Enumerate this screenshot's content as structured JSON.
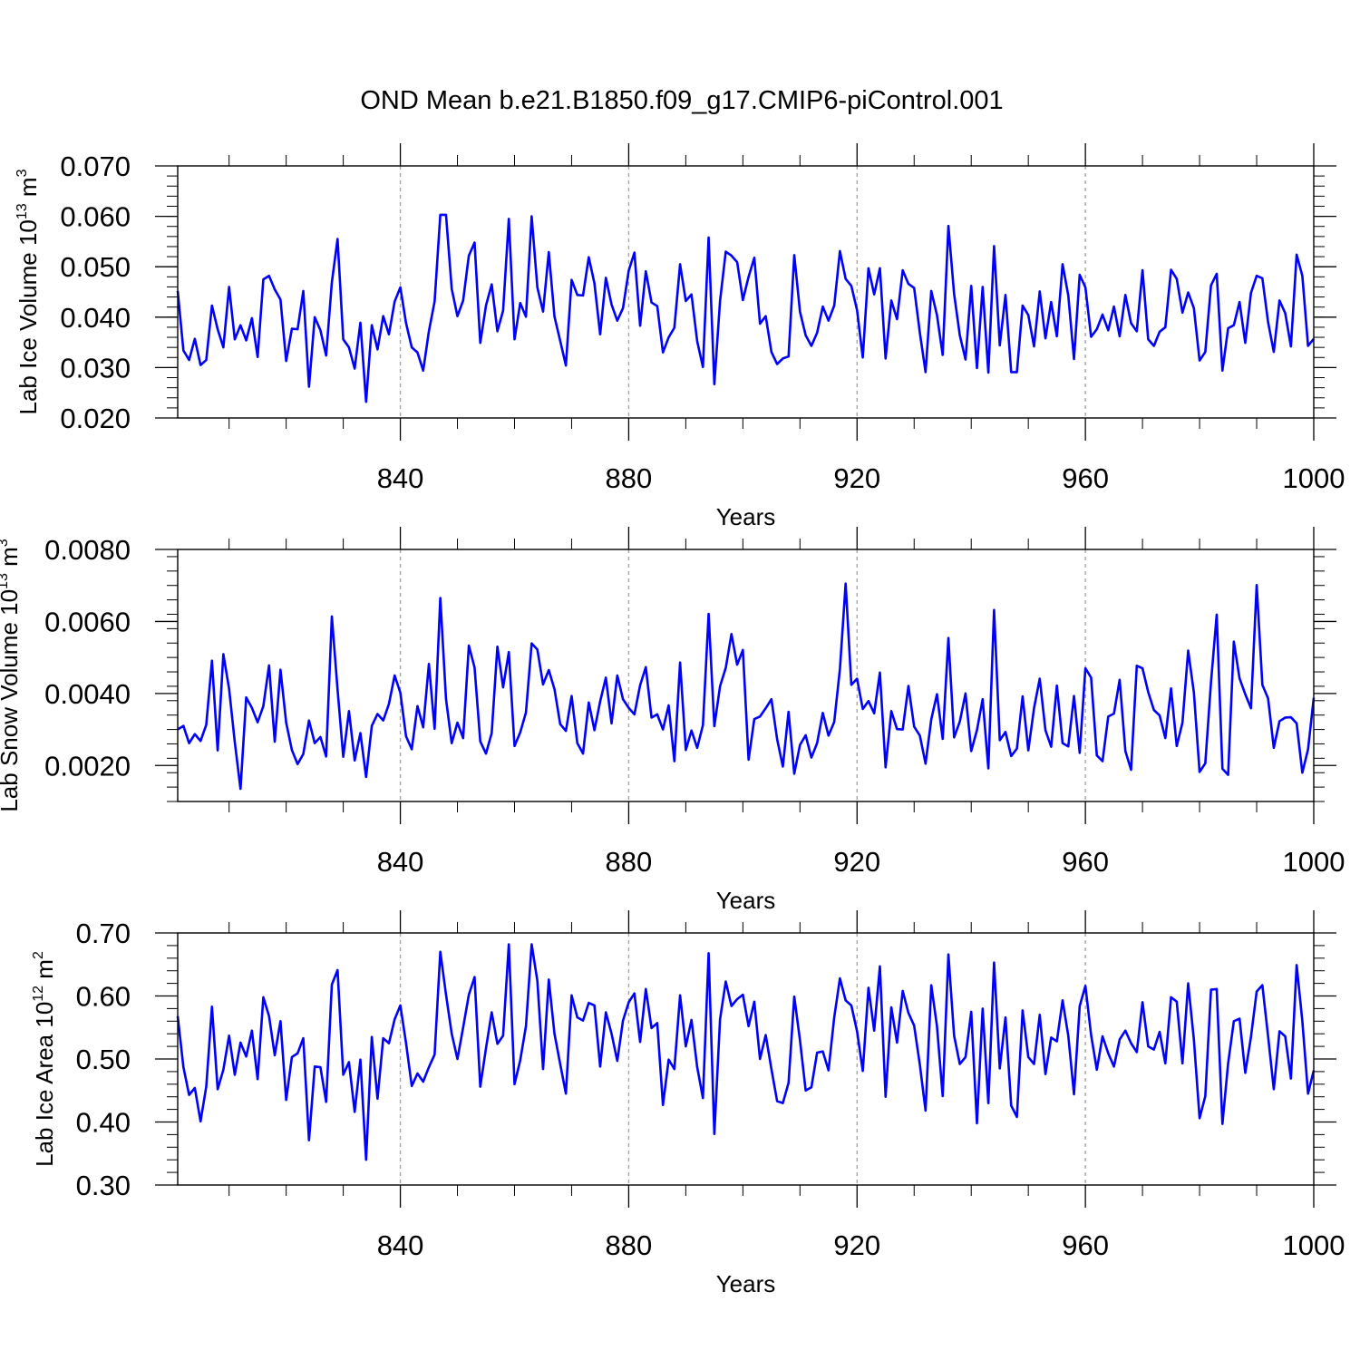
{
  "chart_data": [
    {
      "type": "line",
      "title": "OND Mean b.e21.B1850.f09_g17.CMIP6-piControl.001",
      "xlabel": "Years",
      "ylabel": "Lab Ice Volume 10",
      "ylabel_exp": "13",
      "ylabel_unit": "m",
      "ylabel_unit_exp": "3",
      "xlim": [
        801,
        1000
      ],
      "ylim": [
        0.02,
        0.07
      ],
      "x_ticks": [
        840,
        880,
        920,
        960,
        1000
      ],
      "x_tick_labels": [
        "840",
        "880",
        "920",
        "960",
        "1000"
      ],
      "y_ticks": [
        0.02,
        0.03,
        0.04,
        0.05,
        0.06,
        0.07
      ],
      "y_tick_labels": [
        "0.020",
        "0.030",
        "0.040",
        "0.050",
        "0.060",
        "0.070"
      ],
      "grid": "vertical dashed at major x ticks",
      "line_color": "#0000ff",
      "x_start": 801,
      "values": [
        0.0452,
        0.0334,
        0.0315,
        0.0357,
        0.0305,
        0.0315,
        0.0423,
        0.0376,
        0.034,
        0.046,
        0.0356,
        0.0384,
        0.0354,
        0.0398,
        0.0321,
        0.0475,
        0.0482,
        0.0455,
        0.0435,
        0.0313,
        0.0377,
        0.0376,
        0.0452,
        0.0262,
        0.04,
        0.0374,
        0.0324,
        0.0469,
        0.0555,
        0.0356,
        0.034,
        0.0298,
        0.0389,
        0.0232,
        0.0384,
        0.0336,
        0.0402,
        0.0366,
        0.0431,
        0.0459,
        0.0388,
        0.034,
        0.033,
        0.0294,
        0.0372,
        0.0431,
        0.0603,
        0.0603,
        0.0456,
        0.0402,
        0.0433,
        0.0522,
        0.0548,
        0.0349,
        0.0423,
        0.0465,
        0.0372,
        0.0413,
        0.0595,
        0.0356,
        0.0428,
        0.0401,
        0.06,
        0.0459,
        0.0411,
        0.0529,
        0.0401,
        0.0353,
        0.0304,
        0.0474,
        0.0444,
        0.0443,
        0.0519,
        0.0467,
        0.0366,
        0.0478,
        0.0425,
        0.0393,
        0.0418,
        0.0492,
        0.0528,
        0.0383,
        0.0491,
        0.0429,
        0.0422,
        0.033,
        0.036,
        0.0379,
        0.0505,
        0.0432,
        0.0445,
        0.0352,
        0.0301,
        0.0558,
        0.0267,
        0.0432,
        0.053,
        0.0522,
        0.0509,
        0.0434,
        0.048,
        0.0518,
        0.0387,
        0.0402,
        0.0331,
        0.0307,
        0.0318,
        0.0322,
        0.0523,
        0.0411,
        0.0364,
        0.0343,
        0.0369,
        0.0421,
        0.0393,
        0.0423,
        0.0531,
        0.0476,
        0.0462,
        0.0414,
        0.032,
        0.0497,
        0.0445,
        0.0497,
        0.0318,
        0.0433,
        0.0396,
        0.0493,
        0.0466,
        0.0458,
        0.0369,
        0.0291,
        0.0452,
        0.0404,
        0.0325,
        0.0581,
        0.0446,
        0.0364,
        0.0316,
        0.0462,
        0.0299,
        0.046,
        0.029,
        0.0541,
        0.0344,
        0.0444,
        0.0291,
        0.0291,
        0.0423,
        0.0404,
        0.0342,
        0.0451,
        0.0358,
        0.043,
        0.0362,
        0.0505,
        0.0443,
        0.0317,
        0.0484,
        0.0459,
        0.0361,
        0.0376,
        0.0405,
        0.0374,
        0.0421,
        0.0362,
        0.0444,
        0.0388,
        0.0372,
        0.0493,
        0.0356,
        0.0343,
        0.0371,
        0.038,
        0.0494,
        0.0476,
        0.0409,
        0.0449,
        0.0418,
        0.0314,
        0.0331,
        0.0463,
        0.0486,
        0.0294,
        0.0378,
        0.0384,
        0.043,
        0.0349,
        0.0448,
        0.0482,
        0.0477,
        0.039,
        0.0331,
        0.0433,
        0.0408,
        0.0342,
        0.0524,
        0.0482,
        0.0343,
        0.0357
      ]
    },
    {
      "type": "line",
      "title": "",
      "xlabel": "Years",
      "ylabel": "Lab Snow Volume 10",
      "ylabel_exp": "13",
      "ylabel_unit": "m",
      "ylabel_unit_exp": "3",
      "xlim": [
        801,
        1000
      ],
      "ylim": [
        0.001,
        0.008
      ],
      "x_ticks": [
        840,
        880,
        920,
        960,
        1000
      ],
      "x_tick_labels": [
        "840",
        "880",
        "920",
        "960",
        "1000"
      ],
      "y_ticks": [
        0.002,
        0.004,
        0.006,
        0.008
      ],
      "y_tick_labels": [
        "0.0020",
        "0.0040",
        "0.0060",
        "0.0080"
      ],
      "grid": "vertical dashed at major x ticks",
      "line_color": "#0000ff",
      "x_start": 801,
      "values": [
        0.003,
        0.0031,
        0.00262,
        0.00287,
        0.00268,
        0.00313,
        0.00491,
        0.00242,
        0.00509,
        0.00413,
        0.00265,
        0.00135,
        0.00389,
        0.0036,
        0.0032,
        0.00365,
        0.00478,
        0.00266,
        0.00466,
        0.00319,
        0.00243,
        0.00204,
        0.00232,
        0.00325,
        0.00262,
        0.00279,
        0.00225,
        0.00614,
        0.00411,
        0.00224,
        0.00351,
        0.00214,
        0.0029,
        0.00168,
        0.0031,
        0.00343,
        0.00325,
        0.00371,
        0.0045,
        0.00402,
        0.00281,
        0.00245,
        0.00365,
        0.00306,
        0.00482,
        0.00302,
        0.00665,
        0.00384,
        0.00262,
        0.00319,
        0.00276,
        0.00533,
        0.00472,
        0.00267,
        0.00233,
        0.0029,
        0.0053,
        0.00417,
        0.00515,
        0.00254,
        0.00292,
        0.00347,
        0.00539,
        0.00522,
        0.00425,
        0.00465,
        0.00412,
        0.00315,
        0.00296,
        0.00393,
        0.00262,
        0.00233,
        0.00375,
        0.00298,
        0.00378,
        0.00444,
        0.00317,
        0.0045,
        0.00384,
        0.0036,
        0.00342,
        0.00423,
        0.00473,
        0.00333,
        0.00342,
        0.003,
        0.00367,
        0.00212,
        0.00486,
        0.00243,
        0.00297,
        0.00249,
        0.00312,
        0.00621,
        0.00309,
        0.0042,
        0.00471,
        0.00565,
        0.0048,
        0.00521,
        0.00216,
        0.00329,
        0.00336,
        0.00359,
        0.00384,
        0.00273,
        0.00197,
        0.00349,
        0.00177,
        0.00257,
        0.00284,
        0.00222,
        0.00262,
        0.00346,
        0.00283,
        0.00321,
        0.00468,
        0.00705,
        0.00424,
        0.00441,
        0.00357,
        0.00379,
        0.00345,
        0.00458,
        0.00195,
        0.00351,
        0.00301,
        0.003,
        0.00421,
        0.00308,
        0.00283,
        0.00205,
        0.00328,
        0.00398,
        0.00274,
        0.00554,
        0.00278,
        0.00322,
        0.004,
        0.0024,
        0.00298,
        0.00384,
        0.00192,
        0.00632,
        0.0027,
        0.00293,
        0.00226,
        0.00247,
        0.00392,
        0.00242,
        0.00359,
        0.00441,
        0.00298,
        0.00252,
        0.00422,
        0.00262,
        0.00253,
        0.00393,
        0.00235,
        0.0047,
        0.00444,
        0.00228,
        0.00212,
        0.00336,
        0.00344,
        0.00438,
        0.0024,
        0.00188,
        0.00477,
        0.0047,
        0.00404,
        0.00354,
        0.00339,
        0.00276,
        0.00414,
        0.00254,
        0.00319,
        0.00519,
        0.00403,
        0.00182,
        0.00206,
        0.00431,
        0.00619,
        0.00191,
        0.00174,
        0.00544,
        0.00442,
        0.00398,
        0.00359,
        0.00701,
        0.00424,
        0.00386,
        0.00249,
        0.00323,
        0.00333,
        0.00334,
        0.00317,
        0.0018,
        0.00245,
        0.00388
      ]
    },
    {
      "type": "line",
      "title": "",
      "xlabel": "Years",
      "ylabel": "Lab Ice Area 10",
      "ylabel_exp": "12",
      "ylabel_unit": "m",
      "ylabel_unit_exp": "2",
      "xlim": [
        801,
        1000
      ],
      "ylim": [
        0.3,
        0.7
      ],
      "x_ticks": [
        840,
        880,
        920,
        960,
        1000
      ],
      "x_tick_labels": [
        "840",
        "880",
        "920",
        "960",
        "1000"
      ],
      "y_ticks": [
        0.3,
        0.4,
        0.5,
        0.6,
        0.7
      ],
      "y_tick_labels": [
        "0.30",
        "0.40",
        "0.50",
        "0.60",
        "0.70"
      ],
      "grid": "vertical dashed at major x ticks",
      "line_color": "#0000ff",
      "x_start": 801,
      "values": [
        0.568,
        0.487,
        0.443,
        0.454,
        0.401,
        0.456,
        0.583,
        0.452,
        0.483,
        0.537,
        0.475,
        0.526,
        0.504,
        0.545,
        0.468,
        0.598,
        0.568,
        0.506,
        0.56,
        0.435,
        0.503,
        0.509,
        0.533,
        0.371,
        0.488,
        0.487,
        0.432,
        0.618,
        0.641,
        0.475,
        0.495,
        0.416,
        0.499,
        0.34,
        0.535,
        0.437,
        0.533,
        0.525,
        0.563,
        0.585,
        0.525,
        0.457,
        0.477,
        0.464,
        0.487,
        0.507,
        0.67,
        0.602,
        0.54,
        0.5,
        0.55,
        0.602,
        0.63,
        0.456,
        0.517,
        0.574,
        0.524,
        0.537,
        0.682,
        0.46,
        0.498,
        0.552,
        0.682,
        0.624,
        0.484,
        0.626,
        0.54,
        0.492,
        0.445,
        0.601,
        0.566,
        0.561,
        0.589,
        0.585,
        0.488,
        0.574,
        0.54,
        0.497,
        0.561,
        0.59,
        0.604,
        0.527,
        0.611,
        0.549,
        0.557,
        0.427,
        0.499,
        0.484,
        0.601,
        0.52,
        0.562,
        0.487,
        0.438,
        0.668,
        0.381,
        0.563,
        0.623,
        0.584,
        0.595,
        0.602,
        0.552,
        0.591,
        0.5,
        0.538,
        0.484,
        0.433,
        0.43,
        0.462,
        0.599,
        0.53,
        0.45,
        0.455,
        0.51,
        0.512,
        0.482,
        0.566,
        0.628,
        0.593,
        0.585,
        0.544,
        0.481,
        0.613,
        0.545,
        0.647,
        0.44,
        0.582,
        0.526,
        0.608,
        0.573,
        0.553,
        0.491,
        0.418,
        0.617,
        0.552,
        0.441,
        0.666,
        0.537,
        0.492,
        0.503,
        0.575,
        0.398,
        0.58,
        0.43,
        0.653,
        0.485,
        0.566,
        0.426,
        0.408,
        0.577,
        0.503,
        0.492,
        0.57,
        0.476,
        0.534,
        0.528,
        0.593,
        0.537,
        0.444,
        0.584,
        0.616,
        0.538,
        0.483,
        0.536,
        0.509,
        0.488,
        0.531,
        0.545,
        0.525,
        0.511,
        0.59,
        0.52,
        0.515,
        0.543,
        0.493,
        0.598,
        0.591,
        0.493,
        0.62,
        0.531,
        0.406,
        0.441,
        0.61,
        0.611,
        0.397,
        0.493,
        0.56,
        0.564,
        0.478,
        0.535,
        0.607,
        0.617,
        0.536,
        0.452,
        0.544,
        0.536,
        0.469,
        0.649,
        0.56,
        0.445,
        0.482
      ]
    }
  ]
}
